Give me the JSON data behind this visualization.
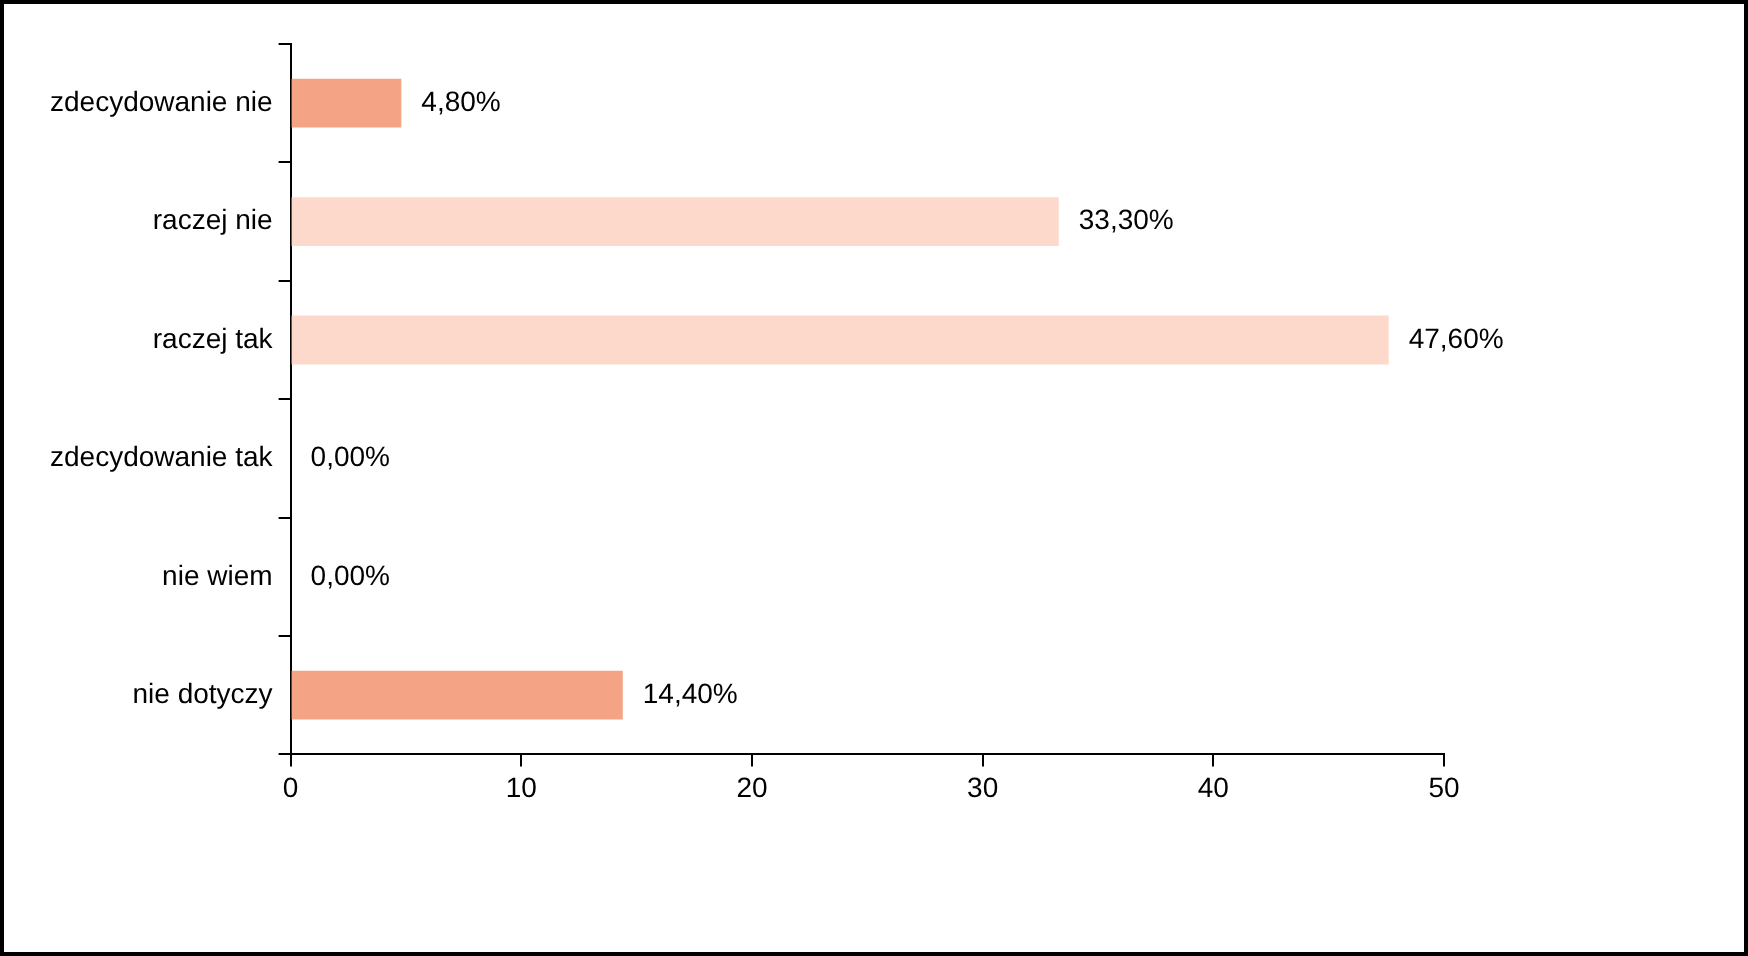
{
  "chart_data": {
    "type": "bar",
    "orientation": "horizontal",
    "categories": [
      "zdecydowanie nie",
      "raczej nie",
      "raczej tak",
      "zdecydowanie tak",
      "nie wiem",
      "nie dotyczy"
    ],
    "values": [
      4.8,
      33.3,
      47.6,
      0,
      0,
      14.4
    ],
    "colors": [
      "#f4a384",
      "#fcd9cb",
      "#fcd9cb",
      "#f4a384",
      "#f4a384",
      "#f4a384"
    ],
    "value_labels": [
      "4,80%",
      "33,30%",
      "47,60%",
      "0,00%",
      "0,00%",
      "14,40%"
    ],
    "xlim": [
      0,
      50
    ],
    "xticks": [
      0,
      10,
      20,
      30,
      40,
      50
    ],
    "grid": false,
    "legend": false
  }
}
